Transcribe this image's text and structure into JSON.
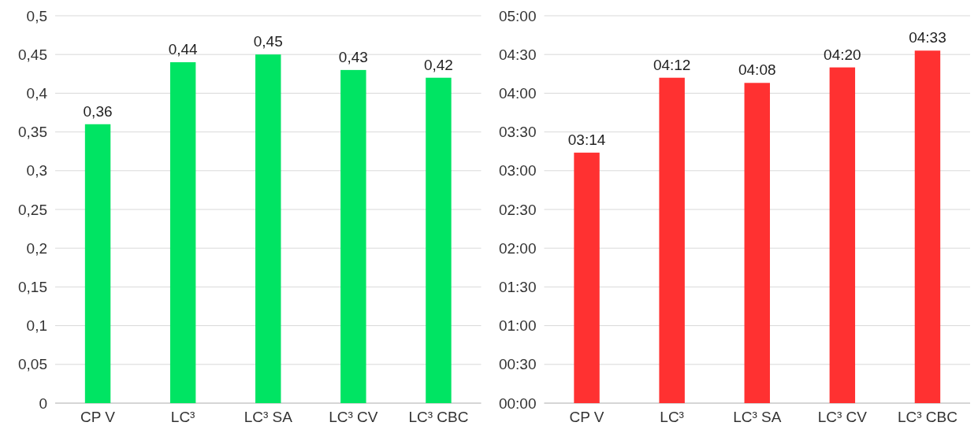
{
  "chart_data": [
    {
      "type": "bar",
      "categories": [
        "CP V",
        "LC³",
        "LC³ SA",
        "LC³ CV",
        "LC³ CBC"
      ],
      "values": [
        0.36,
        0.44,
        0.45,
        0.43,
        0.42
      ],
      "color": "#00e463",
      "value_labels": [
        "0,36",
        "0,44",
        "0,45",
        "0,43",
        "0,42"
      ],
      "ylim": [
        0,
        0.5
      ],
      "yticks": [
        0,
        {
          "value": 0.05,
          "label": "0,05"
        },
        {
          "value": 0.1,
          "label": "0,1"
        },
        {
          "value": 0.15,
          "label": "0,15"
        },
        {
          "value": 0.2,
          "label": "0,2"
        },
        {
          "value": 0.25,
          "label": "0,25"
        },
        {
          "value": 0.3,
          "label": "0,3"
        },
        {
          "value": 0.35,
          "label": "0,35"
        },
        {
          "value": 0.4,
          "label": "0,4"
        },
        {
          "value": 0.45,
          "label": "0,45"
        },
        {
          "value": 0.5,
          "label": "0,5"
        }
      ],
      "grid": "y"
    },
    {
      "type": "bar",
      "categories": [
        "CP V",
        "LC³",
        "LC³ SA",
        "LC³ CV",
        "LC³ CBC"
      ],
      "values": [
        194,
        252,
        248,
        260,
        273
      ],
      "color": "#ff3131",
      "value_labels": [
        "03:14",
        "04:12",
        "04:08",
        "04:20",
        "04:33"
      ],
      "ylim": [
        0,
        300
      ],
      "yticks": [
        {
          "value": 0,
          "label": "00:00"
        },
        {
          "value": 30,
          "label": "00:30"
        },
        {
          "value": 60,
          "label": "01:00"
        },
        {
          "value": 90,
          "label": "01:30"
        },
        {
          "value": 120,
          "label": "02:00"
        },
        {
          "value": 150,
          "label": "02:30"
        },
        {
          "value": 180,
          "label": "03:00"
        },
        {
          "value": 210,
          "label": "03:30"
        },
        {
          "value": 240,
          "label": "04:00"
        },
        {
          "value": 270,
          "label": "04:30"
        },
        {
          "value": 300,
          "label": "05:00"
        }
      ],
      "grid": "y"
    }
  ]
}
